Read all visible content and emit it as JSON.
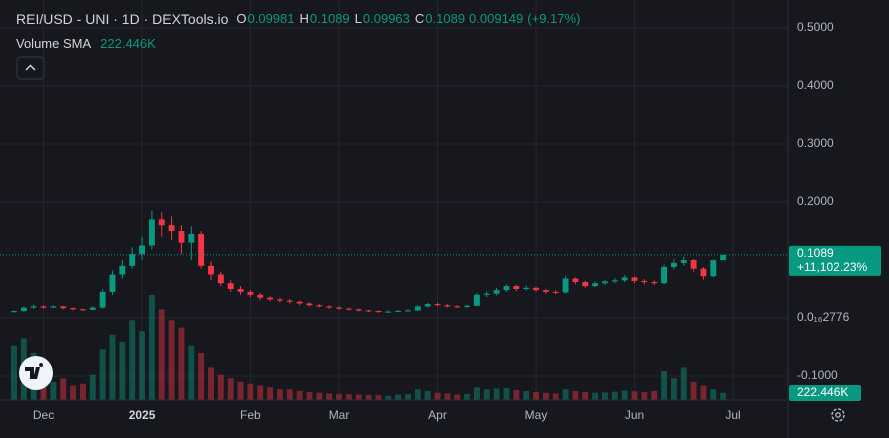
{
  "chart_data": {
    "type": "candlestick",
    "title": "REI/USD - UNI · 1D · DEXTools.io",
    "ohlc_legend": [
      {
        "key": "O",
        "value": 0.09981
      },
      {
        "key": "H",
        "value": 0.1089
      },
      {
        "key": "L",
        "value": 0.09963
      },
      {
        "key": "C",
        "value": 0.1089
      }
    ],
    "change": 0.009149,
    "change_pct": {
      "value": 9.17,
      "label": "(+9.17%)"
    },
    "volume_sma": {
      "label": "Volume SMA",
      "value": 222446,
      "value_label": "222.446K"
    },
    "price_tag": {
      "values": [
        0.1089,
        11102.23
      ],
      "value_labels": [
        "0.1089",
        "+11,102.23%"
      ]
    },
    "up_color": "#089981",
    "down_color": "#f23645",
    "grid": true,
    "categories": [
      null,
      null,
      null,
      "Dec",
      null,
      null,
      null,
      null,
      null,
      null,
      null,
      null,
      null,
      "2025",
      null,
      null,
      null,
      null,
      null,
      null,
      null,
      null,
      null,
      null,
      "Feb",
      null,
      null,
      null,
      null,
      null,
      null,
      null,
      null,
      "Mar",
      null,
      null,
      null,
      null,
      null,
      null,
      null,
      null,
      null,
      "Apr",
      null,
      null,
      null,
      null,
      null,
      null,
      null,
      null,
      null,
      "May",
      null,
      null,
      null,
      null,
      null,
      null,
      null,
      null,
      null,
      "Jun",
      null,
      null,
      null,
      null,
      null,
      null,
      null,
      null,
      null,
      "Jul"
    ],
    "open": [
      0.01,
      0.012,
      0.018,
      0.02,
      0.018,
      0.02,
      0.017,
      0.015,
      0.014,
      0.018,
      0.045,
      0.075,
      0.09,
      0.11,
      0.125,
      0.17,
      0.16,
      0.15,
      0.13,
      0.145,
      0.09,
      0.075,
      0.06,
      0.05,
      0.045,
      0.04,
      0.035,
      0.032,
      0.03,
      0.028,
      0.025,
      0.022,
      0.02,
      0.018,
      0.016,
      0.015,
      0.013,
      0.012,
      0.011,
      0.011,
      0.012,
      0.013,
      0.02,
      0.024,
      0.022,
      0.02,
      0.019,
      0.021,
      0.04,
      0.042,
      0.048,
      0.055,
      0.05,
      0.052,
      0.048,
      0.045,
      0.044,
      0.068,
      0.062,
      0.055,
      0.06,
      0.063,
      0.065,
      0.07,
      0.064,
      0.062,
      0.06,
      0.088,
      0.095,
      0.1,
      0.085,
      0.072,
      0.09981,
      null
    ],
    "high": [
      0.013,
      0.02,
      0.023,
      0.022,
      0.022,
      0.021,
      0.018,
      0.016,
      0.02,
      0.05,
      0.082,
      0.1,
      0.122,
      0.14,
      0.185,
      0.182,
      0.175,
      0.16,
      0.158,
      0.15,
      0.098,
      0.08,
      0.065,
      0.055,
      0.048,
      0.043,
      0.038,
      0.035,
      0.033,
      0.03,
      0.027,
      0.024,
      0.022,
      0.02,
      0.018,
      0.016,
      0.014,
      0.013,
      0.013,
      0.014,
      0.015,
      0.022,
      0.026,
      0.026,
      0.024,
      0.022,
      0.023,
      0.043,
      0.046,
      0.052,
      0.058,
      0.057,
      0.056,
      0.054,
      0.05,
      0.048,
      0.072,
      0.07,
      0.064,
      0.063,
      0.066,
      0.069,
      0.074,
      0.072,
      0.067,
      0.065,
      0.092,
      0.102,
      0.106,
      0.102,
      0.088,
      0.101,
      0.1089,
      null
    ],
    "low": [
      0.009,
      0.011,
      0.016,
      0.016,
      0.017,
      0.015,
      0.013,
      0.012,
      0.013,
      0.016,
      0.04,
      0.068,
      0.085,
      0.1,
      0.118,
      0.14,
      0.135,
      0.11,
      0.1,
      0.085,
      0.065,
      0.055,
      0.045,
      0.04,
      0.036,
      0.031,
      0.029,
      0.027,
      0.025,
      0.022,
      0.02,
      0.018,
      0.016,
      0.014,
      0.013,
      0.011,
      0.01,
      0.009,
      0.009,
      0.01,
      0.011,
      0.012,
      0.018,
      0.02,
      0.018,
      0.017,
      0.017,
      0.02,
      0.036,
      0.039,
      0.045,
      0.046,
      0.047,
      0.045,
      0.042,
      0.041,
      0.042,
      0.058,
      0.052,
      0.053,
      0.057,
      0.06,
      0.062,
      0.06,
      0.058,
      0.057,
      0.058,
      0.084,
      0.09,
      0.08,
      0.066,
      0.07,
      0.09963,
      null
    ],
    "close": [
      0.012,
      0.018,
      0.02,
      0.018,
      0.02,
      0.017,
      0.015,
      0.014,
      0.018,
      0.045,
      0.075,
      0.09,
      0.11,
      0.125,
      0.17,
      0.16,
      0.15,
      0.13,
      0.145,
      0.09,
      0.075,
      0.06,
      0.05,
      0.045,
      0.04,
      0.035,
      0.032,
      0.03,
      0.028,
      0.025,
      0.022,
      0.02,
      0.018,
      0.016,
      0.015,
      0.013,
      0.012,
      0.011,
      0.011,
      0.012,
      0.013,
      0.02,
      0.024,
      0.022,
      0.02,
      0.019,
      0.021,
      0.04,
      0.042,
      0.048,
      0.055,
      0.05,
      0.052,
      0.048,
      0.045,
      0.044,
      0.068,
      0.062,
      0.055,
      0.06,
      0.063,
      0.065,
      0.07,
      0.064,
      0.062,
      0.06,
      0.088,
      0.095,
      0.1,
      0.085,
      0.072,
      0.0998,
      0.1089,
      null
    ],
    "volume": [
      1500000,
      1700000,
      1300000,
      700000,
      500000,
      600000,
      400000,
      450000,
      700000,
      1400000,
      1800000,
      1600000,
      2200000,
      1900000,
      2900000,
      2500000,
      2200000,
      2000000,
      1500000,
      1300000,
      900000,
      700000,
      600000,
      500000,
      450000,
      400000,
      350000,
      300000,
      300000,
      250000,
      220000,
      200000,
      180000,
      170000,
      160000,
      150000,
      140000,
      130000,
      120000,
      150000,
      160000,
      300000,
      250000,
      200000,
      180000,
      150000,
      170000,
      350000,
      300000,
      320000,
      330000,
      280000,
      250000,
      220000,
      200000,
      180000,
      300000,
      250000,
      220000,
      200000,
      210000,
      230000,
      260000,
      240000,
      220000,
      250000,
      800000,
      600000,
      900000,
      500000,
      400000,
      300000,
      200000,
      null
    ],
    "ylim": [
      -0.1414,
      0.5483
    ],
    "yticks": [
      {
        "value": 0.5,
        "label": "0.5000"
      },
      {
        "value": 0.4,
        "label": "0.4000"
      },
      {
        "value": 0.3,
        "label": "0.3000"
      },
      {
        "value": 0.2,
        "label": "0.2000"
      },
      {
        "value": 0,
        "label": "0.0₁₆2776"
      },
      {
        "value": -0.1,
        "label": "-0.1000"
      }
    ]
  }
}
